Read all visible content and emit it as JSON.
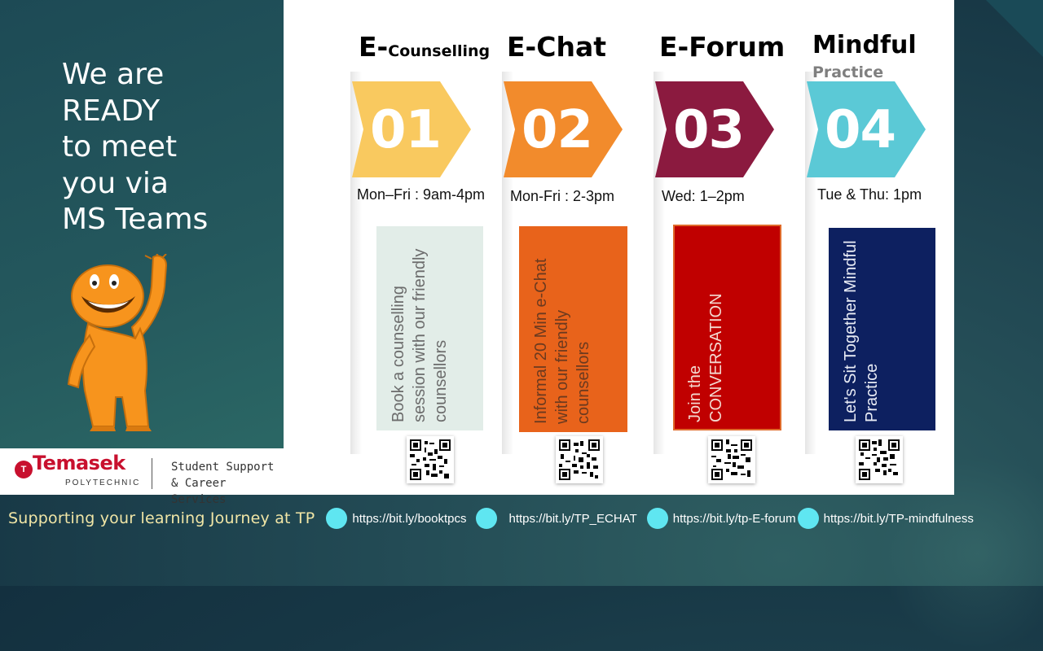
{
  "slide": {
    "headline": "We are\nREADY\nto meet\nyou via\nMS Teams",
    "tagline": "Supporting  your learning Journey at TP"
  },
  "logo": {
    "name": "Temasek",
    "sub": "POLYTECHNIC",
    "dept": "Student Support\n& Career Services"
  },
  "services": [
    {
      "title_main": "E-",
      "title_small": "Counselling",
      "subtitle": "",
      "number": "01",
      "schedule": "Mon–Fri : 9am-4pm",
      "description": "Book a counselling session  with our friendly counsellors",
      "arrow_color": "#f9c95f",
      "box_color": "#e2ede8",
      "text_color": "#6b6b6b"
    },
    {
      "title_main": "E-Chat",
      "title_small": "",
      "subtitle": "",
      "number": "02",
      "schedule": "Mon-Fri : 2-3pm",
      "description": "Informal 20 Min e-Chat with our friendly counsellors",
      "arrow_color": "#f28b2c",
      "box_color": "#e8631b",
      "text_color": "#6b3a1f"
    },
    {
      "title_main": "E-Forum",
      "title_small": "",
      "subtitle": "",
      "number": "03",
      "schedule": "Wed: 1–2pm",
      "description": "Join the CONVERSATION",
      "arrow_color": "#8b1a3f",
      "box_color": "#c00000",
      "text_color": "#f3d9d0"
    },
    {
      "title_main": "Mindful",
      "title_small": "",
      "subtitle": "Practice",
      "number": "04",
      "schedule": "Tue & Thu: 1pm",
      "description": "Let's Sit Together Mindful Practice",
      "arrow_color": "#5bc9d6",
      "box_color": "#0d2060",
      "text_color": "#e9ecf5"
    }
  ],
  "links": [
    "https://bit.ly/booktpcs",
    "https://bit.ly/TP_ECHAT",
    "https://bit.ly/tp-E-forum",
    "https://bit.ly/TP-mindfulness"
  ],
  "icons": {
    "mascot": "waving-figure-icon",
    "qr": "qr-code-icon",
    "bullet": "cyan-dot-icon"
  }
}
